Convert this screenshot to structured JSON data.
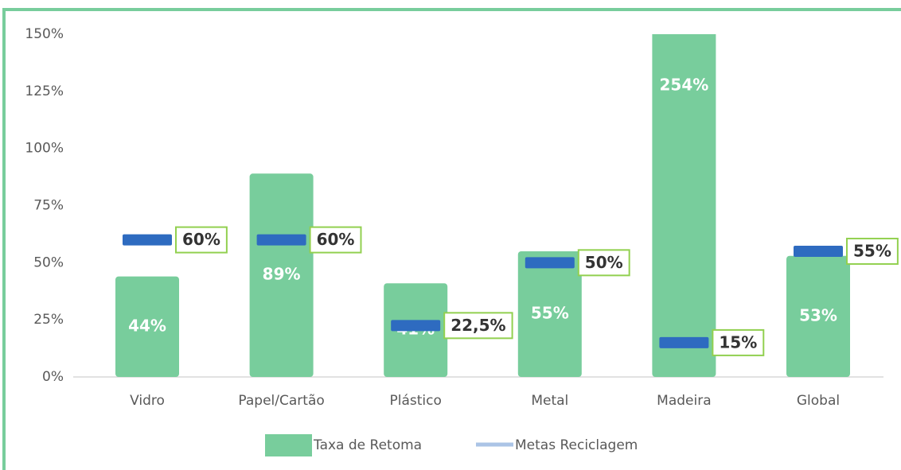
{
  "chart_data": {
    "type": "bar",
    "categories": [
      "Vidro",
      "Papel/Cartão",
      "Plástico",
      "Metal",
      "Madeira",
      "Global"
    ],
    "series": [
      {
        "name": "Taxa de Retoma",
        "color": "#78cd9c",
        "values": [
          44,
          89,
          41,
          55,
          254,
          53
        ],
        "value_labels": [
          "44%",
          "89%",
          "41%",
          "55%",
          "254%",
          "53%"
        ]
      },
      {
        "name": "Metas Reciclagem",
        "color": "#2e6bc0",
        "values": [
          60,
          60,
          22.5,
          50,
          15,
          55
        ],
        "value_labels": [
          "60%",
          "60%",
          "22,5%",
          "50%",
          "15%",
          "55%"
        ]
      }
    ],
    "ylim": [
      0,
      150
    ],
    "yticks": [
      {
        "value": 0,
        "label": "0%"
      },
      {
        "value": 25,
        "label": "25%"
      },
      {
        "value": 50,
        "label": "50%"
      },
      {
        "value": 75,
        "label": "75%"
      },
      {
        "value": 100,
        "label": "100%"
      },
      {
        "value": 125,
        "label": "125%"
      },
      {
        "value": 150,
        "label": "150%"
      }
    ],
    "legend": "bottom"
  }
}
